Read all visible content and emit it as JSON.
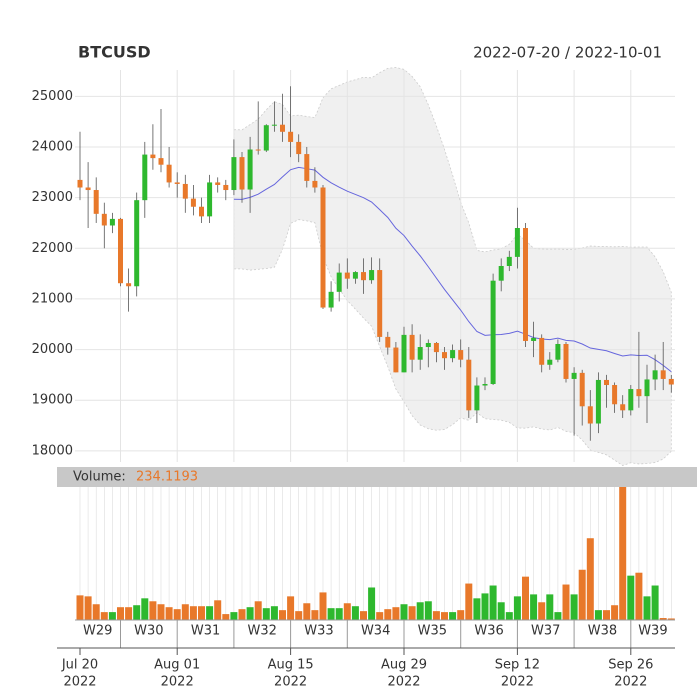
{
  "chart_data": {
    "type": "candlestick",
    "title": "BTCUSD",
    "subtitle": "2022-07-20 / 2022-10-01",
    "x": [
      "2022-07-20",
      "2022-07-21",
      "2022-07-22",
      "2022-07-23",
      "2022-07-24",
      "2022-07-25",
      "2022-07-26",
      "2022-07-27",
      "2022-07-28",
      "2022-07-29",
      "2022-07-30",
      "2022-07-31",
      "2022-08-01",
      "2022-08-02",
      "2022-08-03",
      "2022-08-04",
      "2022-08-05",
      "2022-08-06",
      "2022-08-07",
      "2022-08-08",
      "2022-08-09",
      "2022-08-10",
      "2022-08-11",
      "2022-08-12",
      "2022-08-13",
      "2022-08-14",
      "2022-08-15",
      "2022-08-16",
      "2022-08-17",
      "2022-08-18",
      "2022-08-19",
      "2022-08-20",
      "2022-08-21",
      "2022-08-22",
      "2022-08-23",
      "2022-08-24",
      "2022-08-25",
      "2022-08-26",
      "2022-08-27",
      "2022-08-28",
      "2022-08-29",
      "2022-08-30",
      "2022-08-31",
      "2022-09-01",
      "2022-09-02",
      "2022-09-03",
      "2022-09-04",
      "2022-09-05",
      "2022-09-06",
      "2022-09-07",
      "2022-09-08",
      "2022-09-09",
      "2022-09-10",
      "2022-09-11",
      "2022-09-12",
      "2022-09-13",
      "2022-09-14",
      "2022-09-15",
      "2022-09-16",
      "2022-09-17",
      "2022-09-18",
      "2022-09-19",
      "2022-09-20",
      "2022-09-21",
      "2022-09-22",
      "2022-09-23",
      "2022-09-24",
      "2022-09-25",
      "2022-09-26",
      "2022-09-27",
      "2022-09-28",
      "2022-09-29",
      "2022-09-30",
      "2022-10-01"
    ],
    "open": [
      23350,
      23200,
      23150,
      22680,
      22450,
      22580,
      21310,
      21250,
      22950,
      23850,
      23780,
      23650,
      23300,
      23270,
      22980,
      22820,
      22630,
      23300,
      23250,
      23150,
      23800,
      23160,
      23950,
      23930,
      24430,
      24440,
      24300,
      24100,
      23860,
      23330,
      23200,
      20830,
      21140,
      21520,
      21400,
      21530,
      21370,
      21570,
      20250,
      20040,
      19550,
      20290,
      19800,
      20050,
      20130,
      19950,
      19830,
      19990,
      19800,
      18800,
      19290,
      19320,
      21360,
      21650,
      21830,
      22400,
      20170,
      20230,
      19700,
      19800,
      20110,
      19420,
      19540,
      18880,
      18540,
      19400,
      19300,
      18920,
      18800,
      19220,
      19080,
      19410,
      19590,
      19420
    ],
    "high": [
      24300,
      23700,
      23400,
      22900,
      22700,
      22600,
      21600,
      23100,
      24100,
      24450,
      24750,
      24000,
      23500,
      23450,
      23250,
      23000,
      23450,
      23400,
      23350,
      24150,
      23900,
      24200,
      24900,
      24450,
      24900,
      25050,
      25200,
      24250,
      24000,
      23600,
      23250,
      21350,
      21700,
      21800,
      21550,
      21800,
      21820,
      21800,
      20350,
      20150,
      20450,
      20500,
      20300,
      20200,
      20150,
      20050,
      20100,
      20200,
      20050,
      19450,
      19450,
      21500,
      21800,
      21950,
      22800,
      22500,
      20550,
      20300,
      19950,
      20200,
      20150,
      19650,
      19600,
      19200,
      19550,
      19500,
      19350,
      19100,
      19300,
      20350,
      19700,
      19900,
      20150,
      19500
    ],
    "low": [
      22950,
      22400,
      22500,
      22000,
      22300,
      21250,
      20750,
      21050,
      22600,
      23550,
      23500,
      23200,
      23000,
      22700,
      22650,
      22500,
      22500,
      23100,
      22950,
      23050,
      22900,
      22700,
      23850,
      23900,
      24300,
      24100,
      23800,
      23700,
      23200,
      23100,
      20800,
      20750,
      20950,
      21200,
      21300,
      21100,
      21300,
      20150,
      19900,
      19550,
      19550,
      19550,
      19600,
      19650,
      19750,
      19600,
      19750,
      19650,
      18650,
      18550,
      19200,
      19300,
      21150,
      21550,
      21600,
      20050,
      19850,
      19550,
      19600,
      19750,
      19350,
      18300,
      18500,
      18200,
      18350,
      18850,
      18750,
      18650,
      18700,
      18850,
      18550,
      19200,
      19200,
      19150
    ],
    "close": [
      23200,
      23150,
      22680,
      22450,
      22580,
      21310,
      21250,
      22950,
      23850,
      23780,
      23650,
      23300,
      23270,
      22980,
      22820,
      22630,
      23300,
      23250,
      23150,
      23800,
      23160,
      23950,
      23930,
      24430,
      24440,
      24300,
      24100,
      23860,
      23330,
      23200,
      20830,
      21140,
      21520,
      21400,
      21530,
      21370,
      21570,
      20250,
      20040,
      19550,
      20290,
      19800,
      20050,
      20130,
      19950,
      19830,
      19990,
      19800,
      18800,
      19290,
      19320,
      21360,
      21650,
      21830,
      22400,
      20170,
      20230,
      19700,
      19800,
      20110,
      19420,
      19540,
      18880,
      18540,
      19400,
      19300,
      18920,
      18800,
      19220,
      19080,
      19410,
      19590,
      19420,
      19310
    ],
    "volume_label": "Volume:",
    "volume": [
      3750,
      3600,
      2400,
      1200,
      1200,
      1950,
      1950,
      2250,
      3300,
      2850,
      2400,
      1950,
      1650,
      2400,
      2100,
      2100,
      2100,
      3000,
      900,
      1200,
      1650,
      1950,
      2850,
      1800,
      2100,
      1500,
      3600,
      1350,
      2550,
      1500,
      4200,
      1800,
      1800,
      2550,
      2100,
      1350,
      4950,
      1200,
      1650,
      1950,
      2400,
      2100,
      2700,
      2850,
      1350,
      1200,
      1200,
      1500,
      5550,
      3300,
      4050,
      5250,
      2700,
      1200,
      3600,
      6600,
      3900,
      2700,
      3900,
      1200,
      5400,
      3900,
      7650,
      12450,
      1500,
      1500,
      2250,
      20250,
      6750,
      7200,
      3600,
      5250,
      300,
      234.1193
    ],
    "up_color": "#2eb82e",
    "down_color": "#e8782a",
    "line_color": "#6666dd",
    "band_color": "#f0f0f0",
    "indicators": {
      "sma": 20,
      "bollinger": [
        20,
        2
      ]
    },
    "ylim": [
      17780,
      25520
    ],
    "yticks": [
      18000,
      19000,
      20000,
      21000,
      22000,
      23000,
      24000,
      25000
    ],
    "volume_ylim": [
      0,
      20250
    ],
    "weeks": [
      {
        "value": "2022-07-18",
        "label": "W29"
      },
      {
        "value": "2022-07-25",
        "label": "W30"
      },
      {
        "value": "2022-08-01",
        "label": "W31"
      },
      {
        "value": "2022-08-08",
        "label": "W32"
      },
      {
        "value": "2022-08-15",
        "label": "W33"
      },
      {
        "value": "2022-08-22",
        "label": "W34"
      },
      {
        "value": "2022-08-29",
        "label": "W35"
      },
      {
        "value": "2022-09-05",
        "label": "W36"
      },
      {
        "value": "2022-09-12",
        "label": "W37"
      },
      {
        "value": "2022-09-19",
        "label": "W38"
      },
      {
        "value": "2022-09-26",
        "label": "W39"
      }
    ],
    "xticks": [
      {
        "value": "2022-07-20",
        "label": [
          "Jul 20",
          "2022"
        ]
      },
      {
        "value": "2022-08-01",
        "label": [
          "Aug 01",
          "2022"
        ]
      },
      {
        "value": "2022-08-15",
        "label": [
          "Aug 15",
          "2022"
        ]
      },
      {
        "value": "2022-08-29",
        "label": [
          "Aug 29",
          "2022"
        ]
      },
      {
        "value": "2022-09-12",
        "label": [
          "Sep 12",
          "2022"
        ]
      },
      {
        "value": "2022-09-26",
        "label": [
          "Sep 26",
          "2022"
        ]
      }
    ],
    "grid": true
  }
}
